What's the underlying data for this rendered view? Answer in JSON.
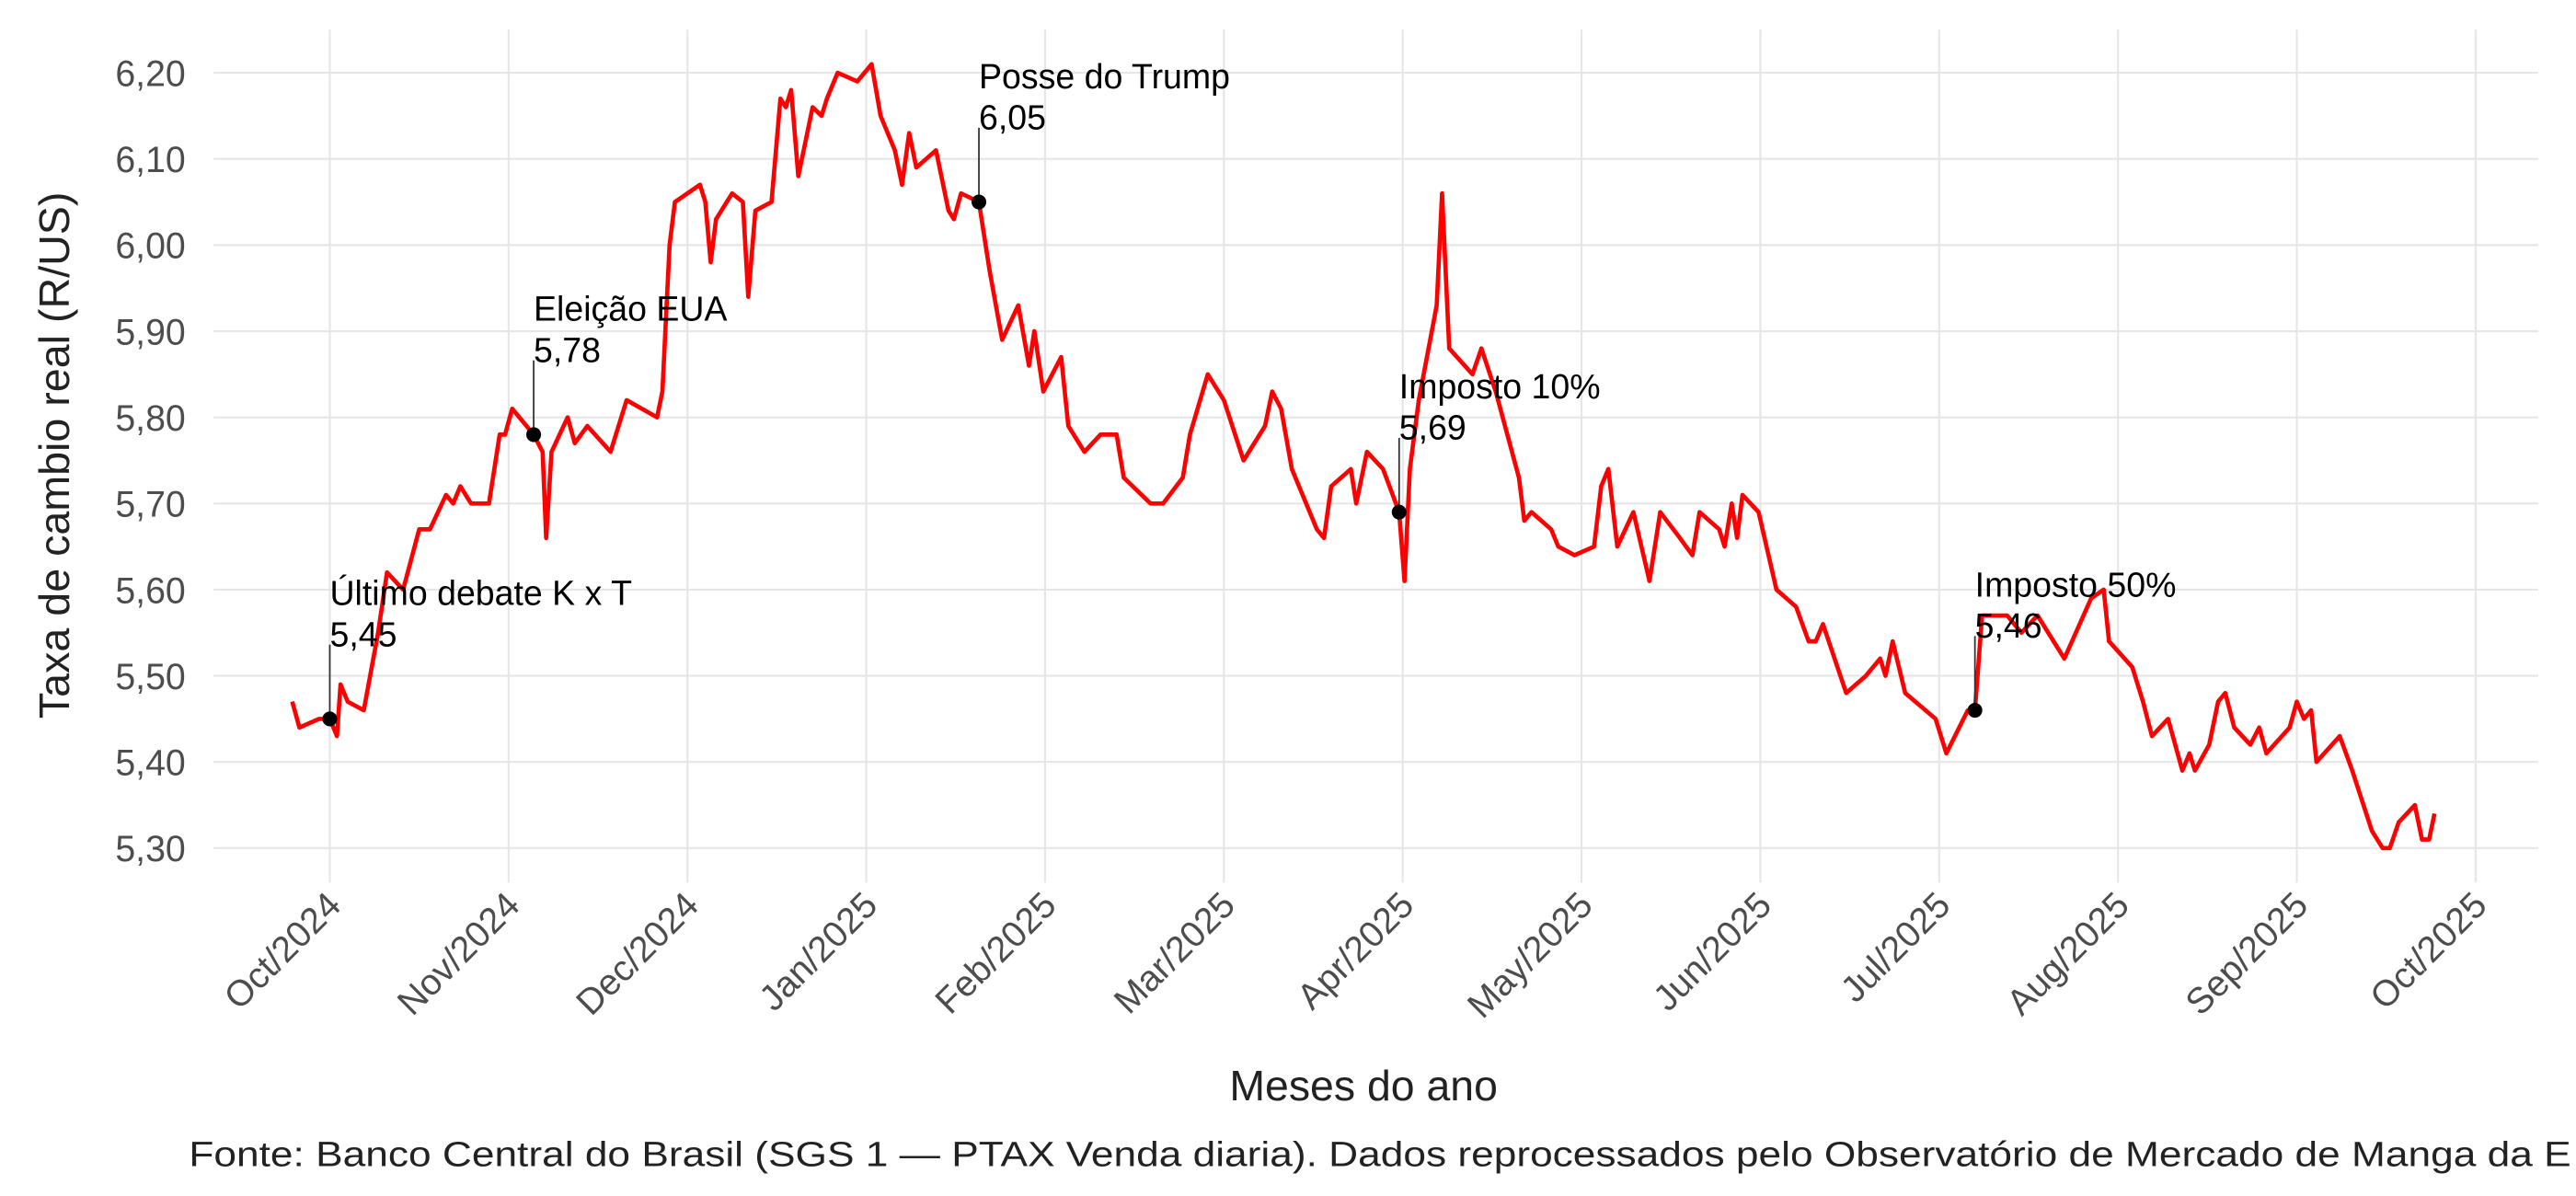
{
  "chart_data": {
    "type": "line",
    "y_label": "Taxa de cambio real (R/US)",
    "x_label": "Meses do ano",
    "caption": "Fonte: Banco Central do Brasil (SGS 1 — PTAX Venda diaria). Dados reprocessados pelo Observatório de Mercado de Manga da E",
    "xlim": [
      -0.65,
      12.35
    ],
    "ylim": [
      5.26,
      6.25
    ],
    "grid": true,
    "xticks": [
      {
        "value": 0,
        "label": "Oct/2024"
      },
      {
        "value": 1,
        "label": "Nov/2024"
      },
      {
        "value": 2,
        "label": "Dec/2024"
      },
      {
        "value": 3,
        "label": "Jan/2025"
      },
      {
        "value": 4,
        "label": "Feb/2025"
      },
      {
        "value": 5,
        "label": "Mar/2025"
      },
      {
        "value": 6,
        "label": "Apr/2025"
      },
      {
        "value": 7,
        "label": "May/2025"
      },
      {
        "value": 8,
        "label": "Jun/2025"
      },
      {
        "value": 9,
        "label": "Jul/2025"
      },
      {
        "value": 10,
        "label": "Aug/2025"
      },
      {
        "value": 11,
        "label": "Sep/2025"
      },
      {
        "value": 12,
        "label": "Oct/2025"
      }
    ],
    "yticks": [
      {
        "value": 5.3,
        "label": "5,30"
      },
      {
        "value": 5.4,
        "label": "5,40"
      },
      {
        "value": 5.5,
        "label": "5,50"
      },
      {
        "value": 5.6,
        "label": "5,60"
      },
      {
        "value": 5.7,
        "label": "5,70"
      },
      {
        "value": 5.8,
        "label": "5,80"
      },
      {
        "value": 5.9,
        "label": "5,90"
      },
      {
        "value": 6.0,
        "label": "6,00"
      },
      {
        "value": 6.1,
        "label": "6,10"
      },
      {
        "value": 6.2,
        "label": "6,20"
      }
    ],
    "series": [
      {
        "color": "#ff0000",
        "x": [
          -0.21,
          -0.17,
          -0.06,
          0.0,
          0.04,
          0.06,
          0.1,
          0.19,
          0.27,
          0.32,
          0.41,
          0.5,
          0.56,
          0.65,
          0.69,
          0.73,
          0.79,
          0.89,
          0.95,
          0.98,
          1.02,
          1.14,
          1.19,
          1.21,
          1.24,
          1.33,
          1.37,
          1.44,
          1.57,
          1.66,
          1.83,
          1.86,
          1.9,
          1.93,
          2.07,
          2.1,
          2.13,
          2.16,
          2.25,
          2.31,
          2.34,
          2.38,
          2.47,
          2.52,
          2.55,
          2.58,
          2.62,
          2.7,
          2.75,
          2.78,
          2.84,
          2.95,
          3.03,
          3.08,
          3.16,
          3.2,
          3.24,
          3.28,
          3.39,
          3.46,
          3.49,
          3.53,
          3.63,
          3.69,
          3.76,
          3.85,
          3.91,
          3.94,
          3.99,
          4.09,
          4.13,
          4.22,
          4.31,
          4.4,
          4.44,
          4.59,
          4.66,
          4.77,
          4.81,
          4.91,
          5.0,
          5.11,
          5.23,
          5.27,
          5.32,
          5.38,
          5.52,
          5.56,
          5.6,
          5.71,
          5.74,
          5.8,
          5.89,
          5.98,
          6.01,
          6.04,
          6.09,
          6.19,
          6.22,
          6.26,
          6.39,
          6.44,
          6.52,
          6.65,
          6.68,
          6.72,
          6.83,
          6.87,
          6.96,
          7.07,
          7.11,
          7.15,
          7.2,
          7.29,
          7.38,
          7.44,
          7.55,
          7.62,
          7.66,
          7.77,
          7.8,
          7.84,
          7.87,
          7.9,
          7.99,
          8.09,
          8.2,
          8.27,
          8.31,
          8.35,
          8.48,
          8.59,
          8.67,
          8.7,
          8.74,
          8.81,
          8.98,
          9.04,
          9.16,
          9.2,
          9.24,
          9.38,
          9.46,
          9.55,
          9.7,
          9.85,
          9.92,
          9.95,
          10.08,
          10.14,
          10.19,
          10.28,
          10.36,
          10.4,
          10.43,
          10.51,
          10.56,
          10.6,
          10.65,
          10.74,
          10.79,
          10.83,
          10.96,
          11.0,
          11.04,
          11.08,
          11.11,
          11.24,
          11.31,
          11.42,
          11.48,
          11.52,
          11.57,
          11.66,
          11.7,
          11.74,
          11.77
        ],
        "values": [
          5.47,
          5.44,
          5.45,
          5.45,
          5.43,
          5.49,
          5.47,
          5.46,
          5.55,
          5.62,
          5.6,
          5.67,
          5.67,
          5.71,
          5.7,
          5.72,
          5.7,
          5.7,
          5.78,
          5.78,
          5.81,
          5.78,
          5.76,
          5.66,
          5.76,
          5.8,
          5.77,
          5.79,
          5.76,
          5.82,
          5.8,
          5.83,
          6.0,
          6.05,
          6.07,
          6.05,
          5.98,
          6.03,
          6.06,
          6.05,
          5.94,
          6.04,
          6.05,
          6.17,
          6.16,
          6.18,
          6.08,
          6.16,
          6.15,
          6.17,
          6.2,
          6.19,
          6.21,
          6.15,
          6.11,
          6.07,
          6.13,
          6.09,
          6.11,
          6.04,
          6.03,
          6.06,
          6.05,
          5.97,
          5.89,
          5.93,
          5.86,
          5.9,
          5.83,
          5.87,
          5.79,
          5.76,
          5.78,
          5.78,
          5.73,
          5.7,
          5.7,
          5.73,
          5.78,
          5.85,
          5.82,
          5.75,
          5.79,
          5.83,
          5.81,
          5.74,
          5.67,
          5.66,
          5.72,
          5.74,
          5.7,
          5.76,
          5.74,
          5.69,
          5.61,
          5.74,
          5.82,
          5.93,
          6.06,
          5.88,
          5.85,
          5.88,
          5.83,
          5.73,
          5.68,
          5.69,
          5.67,
          5.65,
          5.64,
          5.65,
          5.72,
          5.74,
          5.65,
          5.69,
          5.61,
          5.69,
          5.66,
          5.64,
          5.69,
          5.67,
          5.65,
          5.7,
          5.66,
          5.71,
          5.69,
          5.6,
          5.58,
          5.54,
          5.54,
          5.56,
          5.48,
          5.5,
          5.52,
          5.5,
          5.54,
          5.48,
          5.45,
          5.41,
          5.46,
          5.46,
          5.57,
          5.57,
          5.55,
          5.57,
          5.52,
          5.59,
          5.6,
          5.54,
          5.51,
          5.47,
          5.43,
          5.45,
          5.39,
          5.41,
          5.39,
          5.42,
          5.47,
          5.48,
          5.44,
          5.42,
          5.44,
          5.41,
          5.44,
          5.47,
          5.45,
          5.46,
          5.4,
          5.43,
          5.39,
          5.32,
          5.3,
          5.3,
          5.33,
          5.35,
          5.31,
          5.31,
          5.34
        ]
      }
    ],
    "annotations": [
      {
        "text": "Último debate K x T",
        "x": 0.0,
        "value": 5.45,
        "value_label": "5,45"
      },
      {
        "text": "Eleição EUA",
        "x": 1.14,
        "value": 5.78,
        "value_label": "5,78"
      },
      {
        "text": "Posse do Trump",
        "x": 3.63,
        "value": 6.05,
        "value_label": "6,05"
      },
      {
        "text": "Imposto 10%",
        "x": 5.98,
        "value": 5.69,
        "value_label": "5,69"
      },
      {
        "text": "Imposto 50%",
        "x": 9.2,
        "value": 5.46,
        "value_label": "5,46"
      }
    ]
  }
}
